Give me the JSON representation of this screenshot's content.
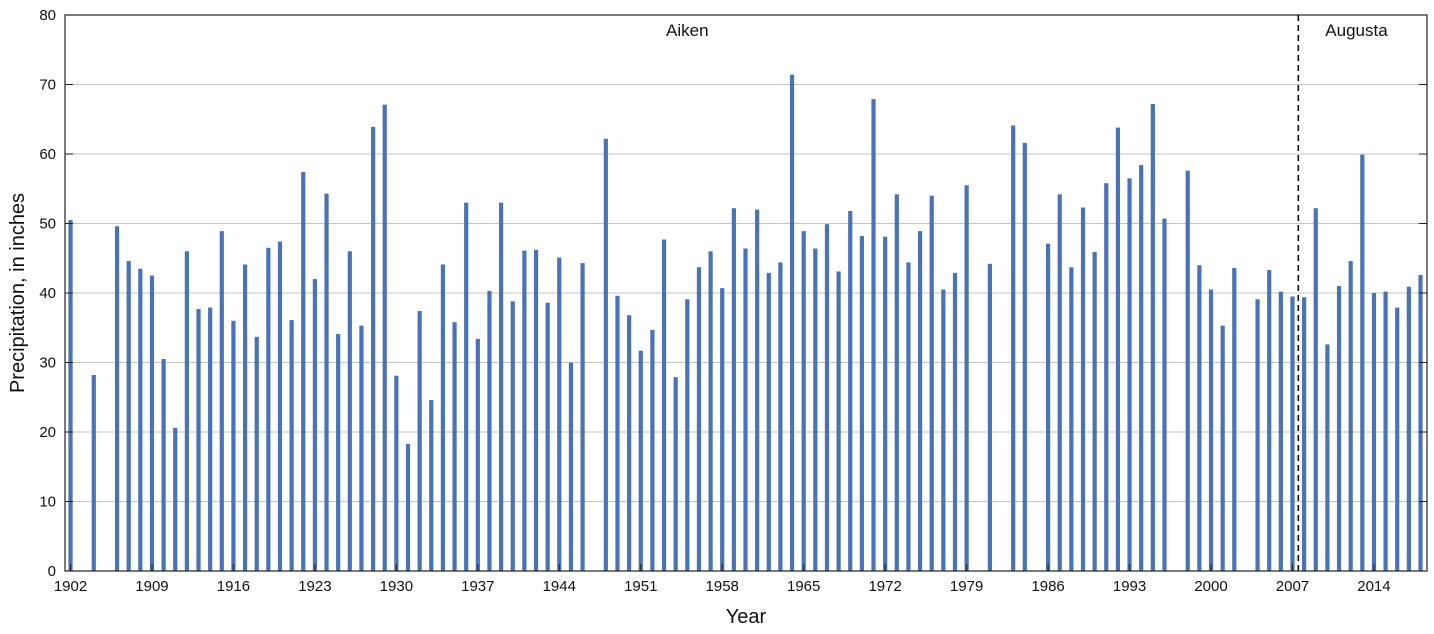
{
  "chart_data": {
    "type": "bar",
    "xlabel": "Year",
    "ylabel": "Precipitation, in inches",
    "xlim": [
      1902,
      2018
    ],
    "ylim": [
      0,
      80
    ],
    "y_ticks": [
      0,
      10,
      20,
      30,
      40,
      50,
      60,
      70,
      80
    ],
    "x_ticks": [
      "1902",
      "1909",
      "1916",
      "1923",
      "1930",
      "1937",
      "1944",
      "1951",
      "1958",
      "1965",
      "1972",
      "1979",
      "1986",
      "1993",
      "2000",
      "2007",
      "2014"
    ],
    "grid": true,
    "bar_color": "#4a72b8",
    "divider_year": 2007.5,
    "annotations": [
      {
        "text": "Aiken",
        "x": 1955
      },
      {
        "text": "Augusta",
        "x": 2012.5
      }
    ],
    "years": [
      1902,
      1904,
      1906,
      1907,
      1908,
      1909,
      1910,
      1911,
      1912,
      1913,
      1914,
      1915,
      1916,
      1917,
      1918,
      1919,
      1920,
      1921,
      1922,
      1923,
      1924,
      1925,
      1926,
      1927,
      1928,
      1929,
      1930,
      1931,
      1932,
      1933,
      1934,
      1935,
      1936,
      1937,
      1938,
      1939,
      1940,
      1941,
      1942,
      1943,
      1944,
      1945,
      1946,
      1948,
      1949,
      1950,
      1951,
      1952,
      1953,
      1954,
      1955,
      1956,
      1957,
      1958,
      1959,
      1960,
      1961,
      1962,
      1963,
      1964,
      1965,
      1966,
      1967,
      1968,
      1969,
      1970,
      1971,
      1972,
      1973,
      1974,
      1975,
      1976,
      1977,
      1978,
      1979,
      1981,
      1983,
      1984,
      1986,
      1987,
      1988,
      1989,
      1990,
      1991,
      1992,
      1993,
      1994,
      1995,
      1996,
      1998,
      1999,
      2000,
      2001,
      2002,
      2004,
      2005,
      2006,
      2007,
      2008,
      2009,
      2010,
      2011,
      2012,
      2013,
      2014,
      2015,
      2016,
      2017,
      2018
    ],
    "values": [
      50.5,
      28.2,
      49.6,
      44.6,
      43.5,
      42.5,
      30.5,
      20.6,
      46.0,
      37.7,
      37.9,
      48.9,
      36.0,
      44.1,
      33.7,
      46.5,
      47.4,
      36.1,
      57.4,
      42.0,
      54.3,
      34.1,
      46.0,
      35.3,
      63.9,
      67.1,
      28.1,
      18.3,
      37.4,
      24.6,
      44.1,
      35.8,
      53.0,
      33.4,
      40.3,
      53.0,
      38.8,
      46.1,
      46.2,
      38.6,
      45.1,
      30.0,
      44.3,
      62.2,
      39.6,
      36.8,
      31.7,
      34.7,
      47.7,
      27.9,
      39.1,
      43.7,
      46.0,
      40.7,
      52.2,
      46.4,
      52.0,
      42.9,
      44.4,
      71.4,
      48.9,
      46.4,
      49.9,
      43.1,
      51.8,
      48.2,
      67.9,
      48.1,
      54.2,
      44.4,
      48.9,
      54.0,
      40.5,
      42.9,
      55.5,
      44.2,
      64.1,
      61.6,
      47.1,
      54.2,
      43.7,
      52.3,
      45.9,
      55.8,
      63.8,
      56.5,
      58.4,
      67.2,
      50.7,
      57.6,
      44.0,
      40.5,
      35.3,
      43.6,
      39.1,
      43.3,
      40.2,
      39.5,
      39.4,
      52.2,
      32.6,
      41.0,
      44.6,
      59.9,
      40.0,
      40.2,
      37.9,
      40.9,
      42.6
    ]
  }
}
